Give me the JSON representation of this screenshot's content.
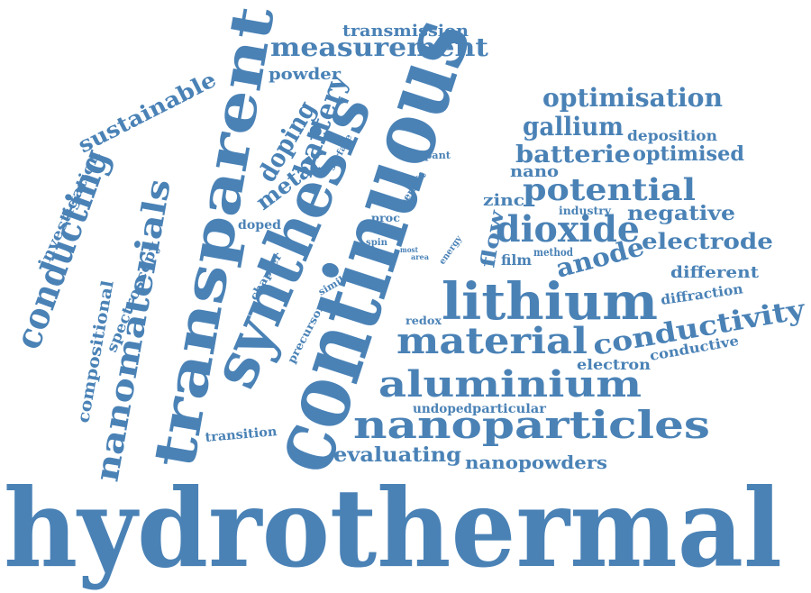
{
  "cloud": {
    "color": "#4A82B6",
    "words": [
      "hydrothermal",
      "continuous",
      "synthesis",
      "transparent",
      "lithium",
      "nanoparticles",
      "aluminium",
      "material",
      "conducting",
      "nanomaterials",
      "conductivity",
      "potential",
      "dioxide",
      "measurement",
      "optimisation",
      "battery",
      "doping",
      "metal",
      "sustainable",
      "electrode",
      "negative",
      "anode",
      "gallium",
      "batterie",
      "optimised",
      "evaluating",
      "nanopowders",
      "flow",
      "spectroscopy",
      "compositional",
      "investigation",
      "transmission",
      "powder",
      "deposition",
      "nano",
      "zinc",
      "industry",
      "different",
      "diffraction",
      "conductive",
      "electron",
      "undoped",
      "particular",
      "transition",
      "precursor",
      "redox",
      "chapter",
      "doped",
      "surface",
      "dopant",
      "benefit",
      "proc",
      "spin",
      "most",
      "area",
      "energy",
      "method",
      "film",
      "similar"
    ]
  }
}
